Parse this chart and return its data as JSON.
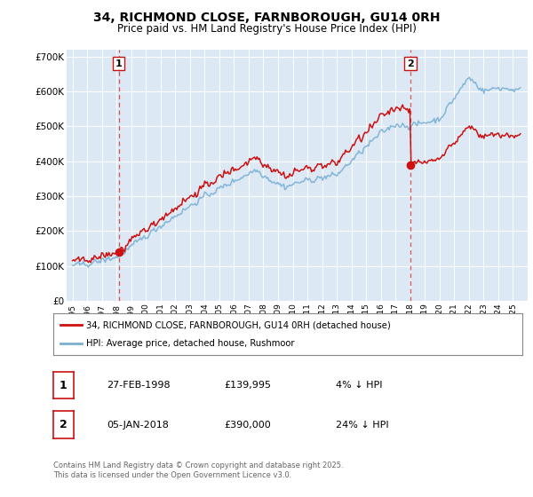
{
  "title_line1": "34, RICHMOND CLOSE, FARNBOROUGH, GU14 0RH",
  "title_line2": "Price paid vs. HM Land Registry's House Price Index (HPI)",
  "bg_color": "#dce9f5",
  "grid_color": "#ffffff",
  "hpi_line_color": "#7ab0d4",
  "price_line_color": "#cc1111",
  "dashed_line_color": "#cc1111",
  "marker_color": "#cc1111",
  "ylim": [
    0,
    720000
  ],
  "yticks": [
    0,
    100000,
    200000,
    300000,
    400000,
    500000,
    600000,
    700000
  ],
  "ytick_labels": [
    "£0",
    "£100K",
    "£200K",
    "£300K",
    "£400K",
    "£500K",
    "£600K",
    "£700K"
  ],
  "sale1_date_num": 1998.15,
  "sale1_price": 139995,
  "sale2_date_num": 2018.02,
  "sale2_price": 390000,
  "legend_label1": "34, RICHMOND CLOSE, FARNBOROUGH, GU14 0RH (detached house)",
  "legend_label2": "HPI: Average price, detached house, Rushmoor",
  "annotation1_label": "1",
  "annotation1_date": "27-FEB-1998",
  "annotation1_price": "£139,995",
  "annotation1_hpi": "4% ↓ HPI",
  "annotation2_label": "2",
  "annotation2_date": "05-JAN-2018",
  "annotation2_price": "£390,000",
  "annotation2_hpi": "24% ↓ HPI",
  "footer": "Contains HM Land Registry data © Crown copyright and database right 2025.\nThis data is licensed under the Open Government Licence v3.0."
}
